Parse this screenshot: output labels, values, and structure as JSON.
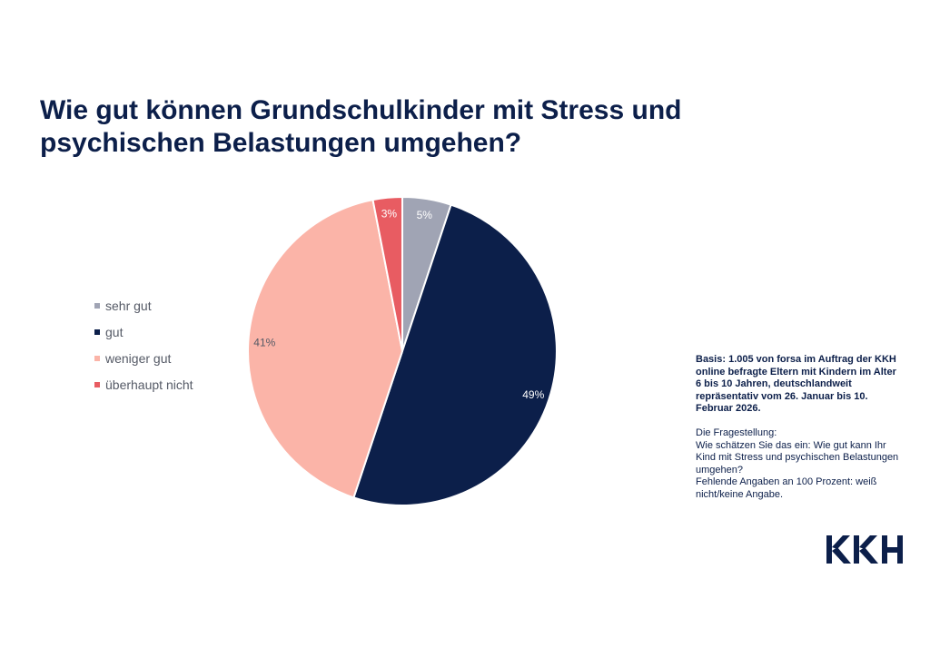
{
  "title_lines": [
    "Wie gut können Grundschulkinder mit Stress und",
    "psychischen Belastungen umgehen?"
  ],
  "chart_data": {
    "type": "pie",
    "title": "Wie gut können Grundschulkinder mit Stress und psychischen Belastungen umgehen?",
    "categories": [
      "sehr gut",
      "gut",
      "weniger gut",
      "überhaupt nicht"
    ],
    "values": [
      5,
      49,
      41,
      3
    ],
    "labels": [
      "5%",
      "49%",
      "41%",
      "3%"
    ],
    "colors": [
      "#a0a4b4",
      "#0c1f4a",
      "#fbb4a8",
      "#e85c62"
    ],
    "label_colors": [
      "#ffffff",
      "#ffffff",
      "#555a66",
      "#ffffff"
    ],
    "legend_position": "left"
  },
  "note": {
    "basis": "Basis: 1.005 von forsa im Auftrag der KKH online befragte Eltern mit Kindern im Alter 6 bis 10 Jahren, deutschlandweit repräsentativ vom 26. Januar bis 10. Februar 2026.",
    "question_label": "Die Fragestellung:",
    "question": "Wie schätzen Sie das ein: Wie gut kann Ihr Kind mit Stress und psychischen Belastungen umgehen?",
    "missing": "Fehlende Angaben an 100 Prozent: weiß nicht/keine Angabe."
  },
  "logo": {
    "text": "KKH",
    "color": "#0c1f4a"
  }
}
